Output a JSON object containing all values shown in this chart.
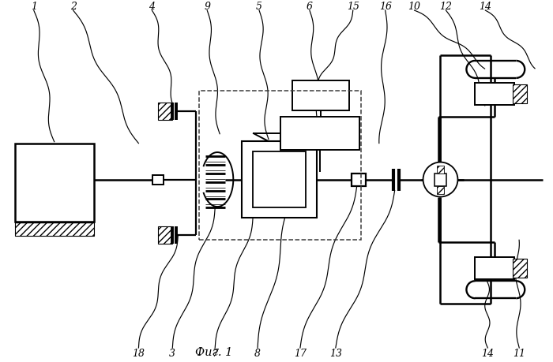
{
  "title": "Фиг. 1",
  "bg": "#ffffff",
  "lc": "#000000"
}
